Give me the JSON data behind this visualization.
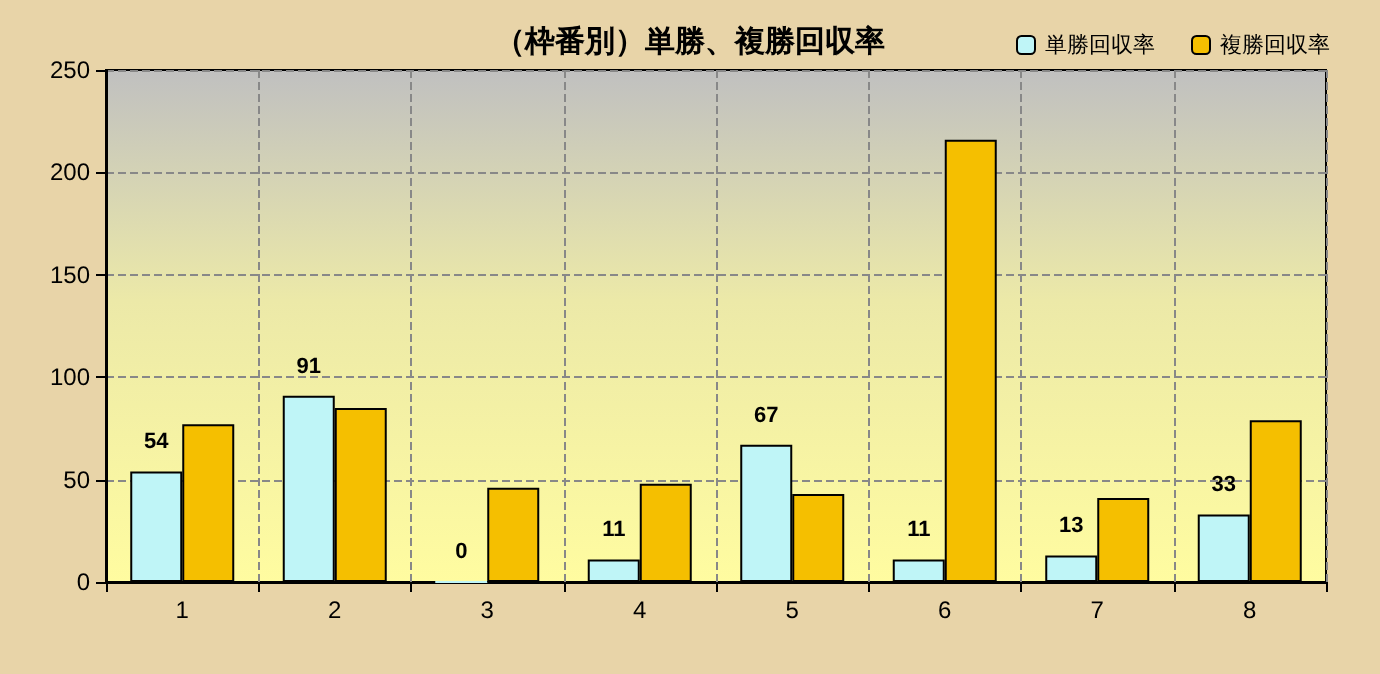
{
  "chart_data": {
    "type": "bar",
    "title": "（枠番別）単勝、複勝回収率",
    "categories": [
      "1",
      "2",
      "3",
      "4",
      "5",
      "6",
      "7",
      "8"
    ],
    "series": [
      {
        "name": "単勝回収率",
        "color": "#bff5f7",
        "values": [
          54,
          91,
          0,
          11,
          67,
          11,
          13,
          33
        ],
        "value_labels": [
          "54",
          "91",
          "0",
          "11",
          "67",
          "11",
          "13",
          "33"
        ]
      },
      {
        "name": "複勝回収率",
        "color": "#f5bf00",
        "values": [
          77,
          85,
          46,
          48,
          43,
          216,
          41,
          79
        ]
      }
    ],
    "ylim": [
      0,
      250
    ],
    "yticks": [
      0,
      50,
      100,
      150,
      200,
      250
    ],
    "grid": true,
    "legend": "top right"
  }
}
